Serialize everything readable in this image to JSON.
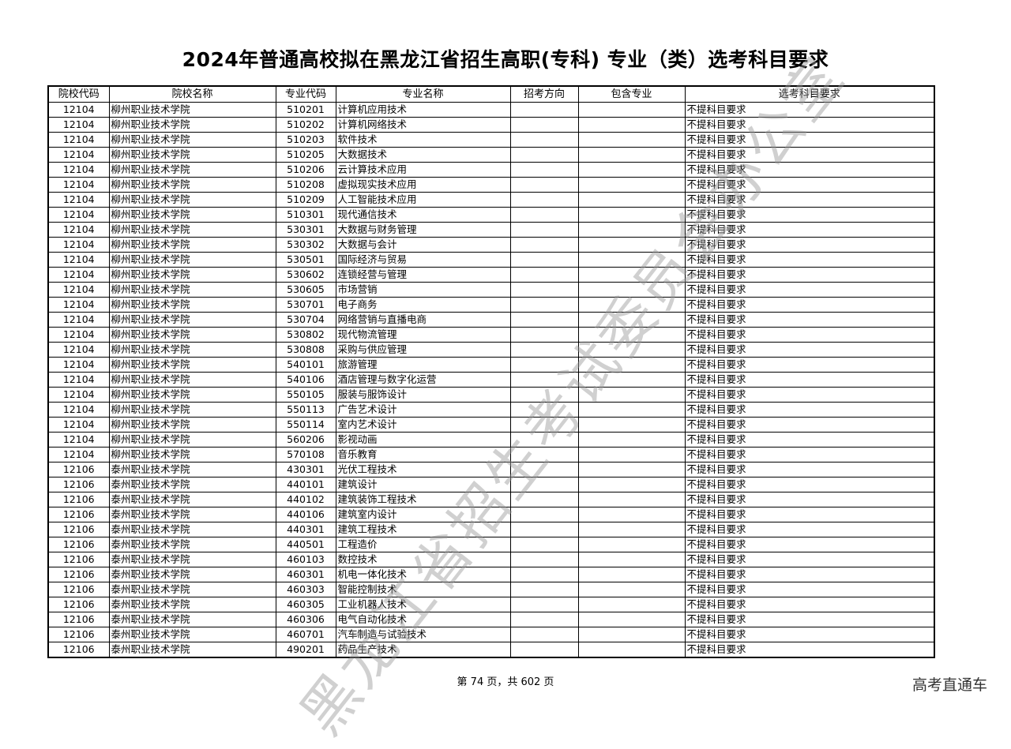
{
  "title": "2024年普通高校拟在黑龙江省招生高职(专科) 专业（类）选考科目要求",
  "table": {
    "headers": [
      "院校代码",
      "院校名称",
      "专业代码",
      "专业名称",
      "招考方向",
      "包含专业",
      "选考科目要求"
    ],
    "rows": [
      [
        "12104",
        "柳州职业技术学院",
        "510201",
        "计算机应用技术",
        "",
        "",
        "不提科目要求"
      ],
      [
        "12104",
        "柳州职业技术学院",
        "510202",
        "计算机网络技术",
        "",
        "",
        "不提科目要求"
      ],
      [
        "12104",
        "柳州职业技术学院",
        "510203",
        "软件技术",
        "",
        "",
        "不提科目要求"
      ],
      [
        "12104",
        "柳州职业技术学院",
        "510205",
        "大数据技术",
        "",
        "",
        "不提科目要求"
      ],
      [
        "12104",
        "柳州职业技术学院",
        "510206",
        "云计算技术应用",
        "",
        "",
        "不提科目要求"
      ],
      [
        "12104",
        "柳州职业技术学院",
        "510208",
        "虚拟现实技术应用",
        "",
        "",
        "不提科目要求"
      ],
      [
        "12104",
        "柳州职业技术学院",
        "510209",
        "人工智能技术应用",
        "",
        "",
        "不提科目要求"
      ],
      [
        "12104",
        "柳州职业技术学院",
        "510301",
        "现代通信技术",
        "",
        "",
        "不提科目要求"
      ],
      [
        "12104",
        "柳州职业技术学院",
        "530301",
        "大数据与财务管理",
        "",
        "",
        "不提科目要求"
      ],
      [
        "12104",
        "柳州职业技术学院",
        "530302",
        "大数据与会计",
        "",
        "",
        "不提科目要求"
      ],
      [
        "12104",
        "柳州职业技术学院",
        "530501",
        "国际经济与贸易",
        "",
        "",
        "不提科目要求"
      ],
      [
        "12104",
        "柳州职业技术学院",
        "530602",
        "连锁经营与管理",
        "",
        "",
        "不提科目要求"
      ],
      [
        "12104",
        "柳州职业技术学院",
        "530605",
        "市场营销",
        "",
        "",
        "不提科目要求"
      ],
      [
        "12104",
        "柳州职业技术学院",
        "530701",
        "电子商务",
        "",
        "",
        "不提科目要求"
      ],
      [
        "12104",
        "柳州职业技术学院",
        "530704",
        "网络营销与直播电商",
        "",
        "",
        "不提科目要求"
      ],
      [
        "12104",
        "柳州职业技术学院",
        "530802",
        "现代物流管理",
        "",
        "",
        "不提科目要求"
      ],
      [
        "12104",
        "柳州职业技术学院",
        "530808",
        "采购与供应管理",
        "",
        "",
        "不提科目要求"
      ],
      [
        "12104",
        "柳州职业技术学院",
        "540101",
        "旅游管理",
        "",
        "",
        "不提科目要求"
      ],
      [
        "12104",
        "柳州职业技术学院",
        "540106",
        "酒店管理与数字化运营",
        "",
        "",
        "不提科目要求"
      ],
      [
        "12104",
        "柳州职业技术学院",
        "550105",
        "服装与服饰设计",
        "",
        "",
        "不提科目要求"
      ],
      [
        "12104",
        "柳州职业技术学院",
        "550113",
        "广告艺术设计",
        "",
        "",
        "不提科目要求"
      ],
      [
        "12104",
        "柳州职业技术学院",
        "550114",
        "室内艺术设计",
        "",
        "",
        "不提科目要求"
      ],
      [
        "12104",
        "柳州职业技术学院",
        "560206",
        "影视动画",
        "",
        "",
        "不提科目要求"
      ],
      [
        "12104",
        "柳州职业技术学院",
        "570108",
        "音乐教育",
        "",
        "",
        "不提科目要求"
      ],
      [
        "12106",
        "泰州职业技术学院",
        "430301",
        "光伏工程技术",
        "",
        "",
        "不提科目要求"
      ],
      [
        "12106",
        "泰州职业技术学院",
        "440101",
        "建筑设计",
        "",
        "",
        "不提科目要求"
      ],
      [
        "12106",
        "泰州职业技术学院",
        "440102",
        "建筑装饰工程技术",
        "",
        "",
        "不提科目要求"
      ],
      [
        "12106",
        "泰州职业技术学院",
        "440106",
        "建筑室内设计",
        "",
        "",
        "不提科目要求"
      ],
      [
        "12106",
        "泰州职业技术学院",
        "440301",
        "建筑工程技术",
        "",
        "",
        "不提科目要求"
      ],
      [
        "12106",
        "泰州职业技术学院",
        "440501",
        "工程造价",
        "",
        "",
        "不提科目要求"
      ],
      [
        "12106",
        "泰州职业技术学院",
        "460103",
        "数控技术",
        "",
        "",
        "不提科目要求"
      ],
      [
        "12106",
        "泰州职业技术学院",
        "460301",
        "机电一体化技术",
        "",
        "",
        "不提科目要求"
      ],
      [
        "12106",
        "泰州职业技术学院",
        "460303",
        "智能控制技术",
        "",
        "",
        "不提科目要求"
      ],
      [
        "12106",
        "泰州职业技术学院",
        "460305",
        "工业机器人技术",
        "",
        "",
        "不提科目要求"
      ],
      [
        "12106",
        "泰州职业技术学院",
        "460306",
        "电气自动化技术",
        "",
        "",
        "不提科目要求"
      ],
      [
        "12106",
        "泰州职业技术学院",
        "460701",
        "汽车制造与试验技术",
        "",
        "",
        "不提科目要求"
      ],
      [
        "12106",
        "泰州职业技术学院",
        "490201",
        "药品生产技术",
        "",
        "",
        "不提科目要求"
      ]
    ]
  },
  "watermark": "黑龙江省招生考试委员会办公室",
  "footer": "第 74 页，共 602 页",
  "brand": "高考直通车"
}
